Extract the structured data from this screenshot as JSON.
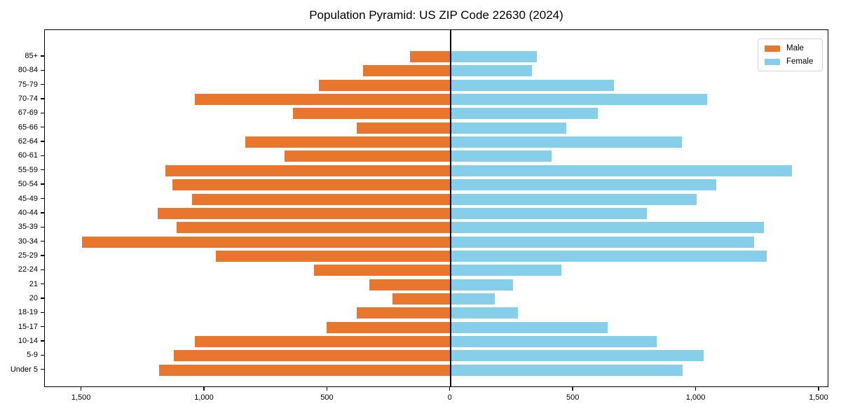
{
  "title": "Population Pyramid: US ZIP Code 22630 (2024)",
  "colors": {
    "male": "#e8762d",
    "female": "#87ceeb",
    "axis": "#000000",
    "background": "#ffffff",
    "legend_border": "#d5d5d5"
  },
  "legend": {
    "male_label": "Male",
    "female_label": "Female",
    "position": "upper right"
  },
  "chart_data": {
    "type": "bar",
    "subtype": "population-pyramid",
    "orientation": "horizontal",
    "title": "Population Pyramid: US ZIP Code 22630 (2024)",
    "categories_top_to_bottom": [
      "85+",
      "80-84",
      "75-79",
      "70-74",
      "67-69",
      "65-66",
      "62-64",
      "60-61",
      "55-59",
      "50-54",
      "45-49",
      "40-44",
      "35-39",
      "30-34",
      "25-29",
      "22-24",
      "21",
      "20",
      "18-19",
      "15-17",
      "10-14",
      "5-9",
      "Under 5"
    ],
    "series": [
      {
        "name": "Male",
        "side": "left",
        "color": "#e8762d",
        "values": [
          165,
          355,
          535,
          1040,
          640,
          380,
          835,
          675,
          1160,
          1130,
          1050,
          1190,
          1115,
          1500,
          955,
          555,
          330,
          235,
          380,
          505,
          1040,
          1125,
          1185
        ]
      },
      {
        "name": "Female",
        "side": "right",
        "color": "#87ceeb",
        "values": [
          350,
          330,
          665,
          1045,
          600,
          470,
          940,
          410,
          1390,
          1080,
          1000,
          800,
          1275,
          1235,
          1285,
          450,
          255,
          180,
          275,
          640,
          840,
          1030,
          945
        ]
      }
    ],
    "x_axis": {
      "tick_values": [
        -1500,
        -1000,
        -500,
        0,
        500,
        1000,
        1500
      ],
      "tick_labels": [
        "1,500",
        "1,000",
        "500",
        "0",
        "500",
        "1,000",
        "1,500"
      ],
      "xlim": [
        -1650,
        1540
      ]
    },
    "y_axis": {
      "label": "",
      "categorical": true
    },
    "grid": false,
    "legend_position": "upper right",
    "zero_line": true
  }
}
